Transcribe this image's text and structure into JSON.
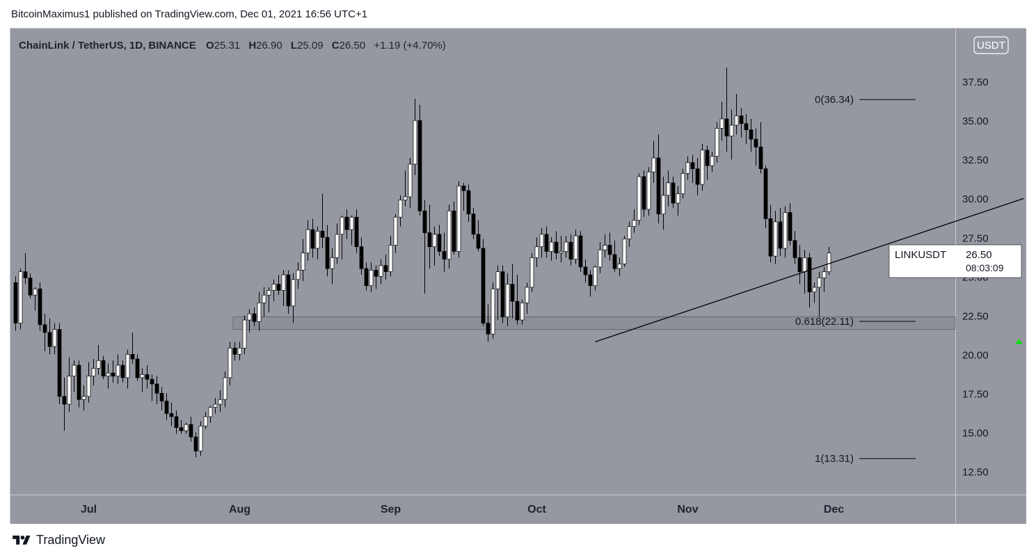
{
  "header": {
    "text": "BitcoinMaximus1 published on TradingView.com, Dec 01, 2021 16:56 UTC+1"
  },
  "legend": {
    "symbol": "ChainLink / TetherUS, 1D, BINANCE",
    "o_label": "O",
    "o_value": "25.31",
    "h_label": "H",
    "h_value": "26.90",
    "l_label": "L",
    "l_value": "25.09",
    "c_label": "C",
    "c_value": "26.50",
    "change": "+1.19 (+4.70%)"
  },
  "currency_badge": "USDT",
  "currency_digit": "4",
  "price_tag": {
    "symbol": "LINKUSDT",
    "price": "26.50",
    "countdown": "08:03:09"
  },
  "footer": {
    "brand": "TradingView"
  },
  "colors": {
    "background": "#9598a1",
    "up_candle": "#ffffff",
    "down_candle": "#000000",
    "fib_line": "#000000",
    "arrow": "#00e600"
  },
  "chart_data": {
    "type": "candlestick",
    "symbol": "LINKUSDT",
    "timeframe": "1D",
    "ylim": [
      11.0,
      40.9
    ],
    "y_ticks": [
      "12.50",
      "15.00",
      "17.50",
      "20.00",
      "22.50",
      "25.00",
      "27.50",
      "30.00",
      "32.50",
      "35.00",
      "37.50"
    ],
    "x_ticks": [
      "Jul",
      "Aug",
      "Sep",
      "Oct",
      "Nov",
      "Dec"
    ],
    "x_tick_days": [
      15,
      46,
      77,
      107,
      138,
      168
    ],
    "candles": [
      [
        24.6,
        25.0,
        21.5,
        22.0
      ],
      [
        22.0,
        25.5,
        21.6,
        25.3
      ],
      [
        25.3,
        26.5,
        24.5,
        24.9
      ],
      [
        24.9,
        25.2,
        23.6,
        23.8
      ],
      [
        23.8,
        24.3,
        22.8,
        24.2
      ],
      [
        24.2,
        24.6,
        21.5,
        21.9
      ],
      [
        21.9,
        22.6,
        20.2,
        21.4
      ],
      [
        21.4,
        22.3,
        20.0,
        20.5
      ],
      [
        20.5,
        22.0,
        20.0,
        21.6
      ],
      [
        21.6,
        22.0,
        16.8,
        17.3
      ],
      [
        17.3,
        18.5,
        15.1,
        16.8
      ],
      [
        16.8,
        19.8,
        16.3,
        18.6
      ],
      [
        18.6,
        19.6,
        17.6,
        19.3
      ],
      [
        19.3,
        19.6,
        16.6,
        17.1
      ],
      [
        17.1,
        18.0,
        16.4,
        17.3
      ],
      [
        17.3,
        19.5,
        16.9,
        18.6
      ],
      [
        18.6,
        19.7,
        18.0,
        19.1
      ],
      [
        19.1,
        20.6,
        18.7,
        19.6
      ],
      [
        19.6,
        19.9,
        18.4,
        18.6
      ],
      [
        18.6,
        19.4,
        17.8,
        18.8
      ],
      [
        18.8,
        19.6,
        18.2,
        18.6
      ],
      [
        18.6,
        20.0,
        18.1,
        19.3
      ],
      [
        19.3,
        19.6,
        18.2,
        18.5
      ],
      [
        18.5,
        20.3,
        17.8,
        20.0
      ],
      [
        20.0,
        21.4,
        19.4,
        19.7
      ],
      [
        19.7,
        20.0,
        18.3,
        18.5
      ],
      [
        18.5,
        19.1,
        17.6,
        18.7
      ],
      [
        18.7,
        19.3,
        17.8,
        18.4
      ],
      [
        18.4,
        18.7,
        17.0,
        18.1
      ],
      [
        18.1,
        18.6,
        16.8,
        17.5
      ],
      [
        17.5,
        17.9,
        16.4,
        17.0
      ],
      [
        17.0,
        17.5,
        15.8,
        16.2
      ],
      [
        16.2,
        16.9,
        15.4,
        16.0
      ],
      [
        16.0,
        16.4,
        14.9,
        15.3
      ],
      [
        15.3,
        15.8,
        14.9,
        15.1
      ],
      [
        15.1,
        15.6,
        14.9,
        15.5
      ],
      [
        15.5,
        16.0,
        14.4,
        14.7
      ],
      [
        14.7,
        15.0,
        13.4,
        13.8
      ],
      [
        13.8,
        15.7,
        13.5,
        15.4
      ],
      [
        15.4,
        16.3,
        15.2,
        16.0
      ],
      [
        16.0,
        16.7,
        15.6,
        16.6
      ],
      [
        16.6,
        17.2,
        16.2,
        16.8
      ],
      [
        16.8,
        17.7,
        16.3,
        17.1
      ],
      [
        17.1,
        18.9,
        16.6,
        18.5
      ],
      [
        18.5,
        20.8,
        18.0,
        20.4
      ],
      [
        20.4,
        20.8,
        19.6,
        20.0
      ],
      [
        20.0,
        20.8,
        19.6,
        20.4
      ],
      [
        20.4,
        22.5,
        20.0,
        22.2
      ],
      [
        22.2,
        22.9,
        21.4,
        22.6
      ],
      [
        22.6,
        23.0,
        21.8,
        22.1
      ],
      [
        22.1,
        24.0,
        21.5,
        23.3
      ],
      [
        23.3,
        24.3,
        22.4,
        23.8
      ],
      [
        23.8,
        24.3,
        22.7,
        24.1
      ],
      [
        24.1,
        24.8,
        23.4,
        24.5
      ],
      [
        24.5,
        25.1,
        23.8,
        24.1
      ],
      [
        24.1,
        25.4,
        23.1,
        25.1
      ],
      [
        25.1,
        25.4,
        22.6,
        23.1
      ],
      [
        23.1,
        25.2,
        22.0,
        24.8
      ],
      [
        24.8,
        25.9,
        24.2,
        25.4
      ],
      [
        25.4,
        27.4,
        24.7,
        26.5
      ],
      [
        26.5,
        28.6,
        26.0,
        28.0
      ],
      [
        28.0,
        28.7,
        26.2,
        26.8
      ],
      [
        26.8,
        28.2,
        26.1,
        27.9
      ],
      [
        27.9,
        30.3,
        26.8,
        27.5
      ],
      [
        27.5,
        28.3,
        25.0,
        25.5
      ],
      [
        25.5,
        26.8,
        24.5,
        26.2
      ],
      [
        26.2,
        28.4,
        25.8,
        27.7
      ],
      [
        27.7,
        28.9,
        26.1,
        28.8
      ],
      [
        28.8,
        29.3,
        27.4,
        28.0
      ],
      [
        28.0,
        28.9,
        27.0,
        28.8
      ],
      [
        28.8,
        29.3,
        26.5,
        26.9
      ],
      [
        26.9,
        27.5,
        25.1,
        25.5
      ],
      [
        25.5,
        25.9,
        24.1,
        24.4
      ],
      [
        24.4,
        25.9,
        24.0,
        25.4
      ],
      [
        25.4,
        25.7,
        24.2,
        25.0
      ],
      [
        25.0,
        26.1,
        24.5,
        25.7
      ],
      [
        25.7,
        26.4,
        24.8,
        25.3
      ],
      [
        25.3,
        27.6,
        25.0,
        27.0
      ],
      [
        27.0,
        29.0,
        26.5,
        28.8
      ],
      [
        28.8,
        30.2,
        28.2,
        29.9
      ],
      [
        29.9,
        31.8,
        29.5,
        30.1
      ],
      [
        30.1,
        32.6,
        29.4,
        32.2
      ],
      [
        32.2,
        36.4,
        31.5,
        35.0
      ],
      [
        35.0,
        36.0,
        28.9,
        29.2
      ],
      [
        29.2,
        29.9,
        23.9,
        27.8
      ],
      [
        27.8,
        29.6,
        25.5,
        26.9
      ],
      [
        26.9,
        28.2,
        25.7,
        27.7
      ],
      [
        27.7,
        28.3,
        26.3,
        26.6
      ],
      [
        26.6,
        27.8,
        25.3,
        26.1
      ],
      [
        26.1,
        29.6,
        25.5,
        29.2
      ],
      [
        29.2,
        29.8,
        26.4,
        26.6
      ],
      [
        26.6,
        31.1,
        26.2,
        30.8
      ],
      [
        30.8,
        31.0,
        29.2,
        30.5
      ],
      [
        30.5,
        30.9,
        28.5,
        29.0
      ],
      [
        29.0,
        29.4,
        27.4,
        27.7
      ],
      [
        27.7,
        28.6,
        26.6,
        26.8
      ],
      [
        26.8,
        27.4,
        21.8,
        22.0
      ],
      [
        22.0,
        23.2,
        20.8,
        21.3
      ],
      [
        21.3,
        24.6,
        21.0,
        24.2
      ],
      [
        24.2,
        25.7,
        22.2,
        25.3
      ],
      [
        25.3,
        25.7,
        22.0,
        22.4
      ],
      [
        22.4,
        25.2,
        21.8,
        24.5
      ],
      [
        24.5,
        25.8,
        22.3,
        23.4
      ],
      [
        23.4,
        25.1,
        21.9,
        22.2
      ],
      [
        22.2,
        23.5,
        21.9,
        23.3
      ],
      [
        23.3,
        24.6,
        22.6,
        24.3
      ],
      [
        24.3,
        26.5,
        24.0,
        26.2
      ],
      [
        26.2,
        27.5,
        25.6,
        26.9
      ],
      [
        26.9,
        28.1,
        26.2,
        27.7
      ],
      [
        27.7,
        28.2,
        26.2,
        26.6
      ],
      [
        26.6,
        27.5,
        26.0,
        27.2
      ],
      [
        27.2,
        27.9,
        26.1,
        26.5
      ],
      [
        26.5,
        27.6,
        25.9,
        26.6
      ],
      [
        26.6,
        27.6,
        26.2,
        27.2
      ],
      [
        27.2,
        27.7,
        25.7,
        26.1
      ],
      [
        26.1,
        28.0,
        25.8,
        27.6
      ],
      [
        27.6,
        27.9,
        25.3,
        25.6
      ],
      [
        25.6,
        26.1,
        24.6,
        25.1
      ],
      [
        25.1,
        25.4,
        23.7,
        24.4
      ],
      [
        24.4,
        25.7,
        24.1,
        25.6
      ],
      [
        25.6,
        27.2,
        25.2,
        26.7
      ],
      [
        26.7,
        27.7,
        26.2,
        27.0
      ],
      [
        27.0,
        27.8,
        26.0,
        26.4
      ],
      [
        26.4,
        27.3,
        25.3,
        25.5
      ],
      [
        25.5,
        26.2,
        25.0,
        25.8
      ],
      [
        25.8,
        27.6,
        25.6,
        27.4
      ],
      [
        27.4,
        28.5,
        26.9,
        28.2
      ],
      [
        28.2,
        29.3,
        27.8,
        28.6
      ],
      [
        28.6,
        31.6,
        28.3,
        31.4
      ],
      [
        31.4,
        31.8,
        28.8,
        29.3
      ],
      [
        29.3,
        32.0,
        28.9,
        31.7
      ],
      [
        31.7,
        33.7,
        31.0,
        32.6
      ],
      [
        32.6,
        34.1,
        28.4,
        29.0
      ],
      [
        29.0,
        31.4,
        28.0,
        30.2
      ],
      [
        30.2,
        31.8,
        29.5,
        31.0
      ],
      [
        31.0,
        31.4,
        29.4,
        29.7
      ],
      [
        29.7,
        30.8,
        28.9,
        30.3
      ],
      [
        30.3,
        31.9,
        30.0,
        31.6
      ],
      [
        31.6,
        32.7,
        31.2,
        32.3
      ],
      [
        32.3,
        32.8,
        31.0,
        31.9
      ],
      [
        31.9,
        32.6,
        30.2,
        30.9
      ],
      [
        30.9,
        33.5,
        30.5,
        33.1
      ],
      [
        33.1,
        33.4,
        31.2,
        32.1
      ],
      [
        32.1,
        33.0,
        31.7,
        32.7
      ],
      [
        32.7,
        34.9,
        32.3,
        34.5
      ],
      [
        34.5,
        36.2,
        33.7,
        35.1
      ],
      [
        35.1,
        38.4,
        33.0,
        34.0
      ],
      [
        34.0,
        35.7,
        32.5,
        34.7
      ],
      [
        34.7,
        36.7,
        34.1,
        35.3
      ],
      [
        35.3,
        35.8,
        33.9,
        34.8
      ],
      [
        34.8,
        35.4,
        33.5,
        34.4
      ],
      [
        34.4,
        35.1,
        33.0,
        33.8
      ],
      [
        33.8,
        34.5,
        32.1,
        33.3
      ],
      [
        33.3,
        34.9,
        31.6,
        31.9
      ],
      [
        31.9,
        32.1,
        28.1,
        28.7
      ],
      [
        28.7,
        29.6,
        25.9,
        26.3
      ],
      [
        26.3,
        29.2,
        25.8,
        28.5
      ],
      [
        28.5,
        29.4,
        26.3,
        26.8
      ],
      [
        26.8,
        29.5,
        26.2,
        29.1
      ],
      [
        29.1,
        29.7,
        27.0,
        27.3
      ],
      [
        27.3,
        27.9,
        25.8,
        26.2
      ],
      [
        26.2,
        27.0,
        24.5,
        25.3
      ],
      [
        25.3,
        26.7,
        23.9,
        26.2
      ],
      [
        26.2,
        26.5,
        23.0,
        24.0
      ],
      [
        24.0,
        24.6,
        23.3,
        24.3
      ],
      [
        24.3,
        25.3,
        22.4,
        24.9
      ],
      [
        24.9,
        25.6,
        24.0,
        25.3
      ],
      [
        25.3,
        26.9,
        25.09,
        26.5
      ]
    ],
    "trendline": [
      [
        119,
        20.8
      ],
      [
        207,
        30.0
      ]
    ],
    "horizontal_zone": [
      21.6,
      22.4
    ],
    "fib_levels": [
      {
        "label": "0(36.34)",
        "value": 36.34
      },
      {
        "label": "0.618(22.11)",
        "value": 22.11
      },
      {
        "label": "1(13.31)",
        "value": 13.31
      }
    ],
    "marker": {
      "day": 206,
      "value": 20.8,
      "shape": "triangle-up"
    }
  }
}
